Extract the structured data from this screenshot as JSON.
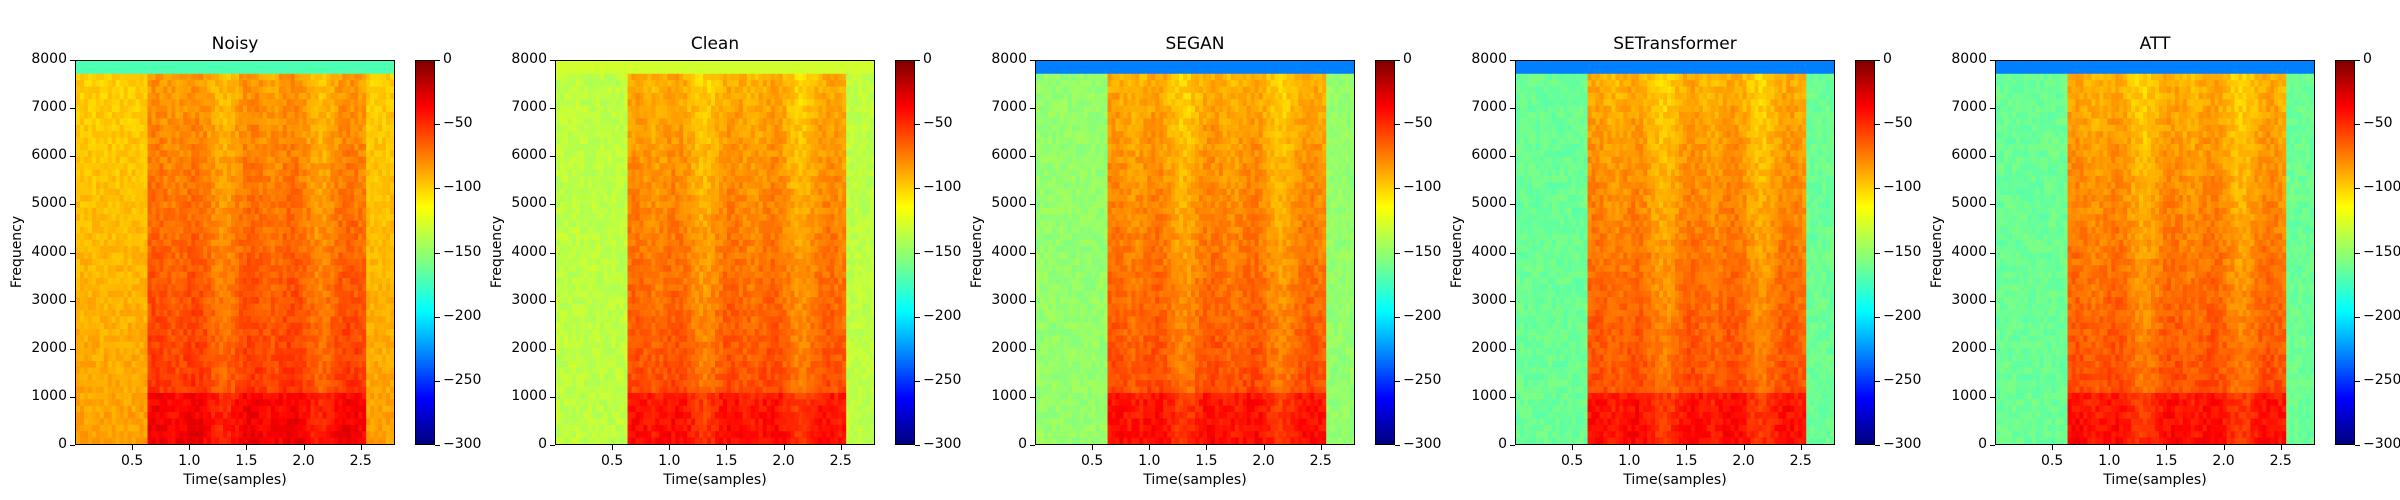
{
  "chart_data": {
    "type": "heatmap",
    "ylabel": "Frequency",
    "xlabel": "Time(samples)",
    "ylim": [
      0,
      8000
    ],
    "xlim": [
      0,
      2.8
    ],
    "yticks": [
      "0",
      "1000",
      "2000",
      "3000",
      "4000",
      "5000",
      "6000",
      "7000",
      "8000"
    ],
    "yticks_values": [
      0,
      1000,
      2000,
      3000,
      4000,
      5000,
      6000,
      7000,
      8000
    ],
    "xticks": [
      "0.5",
      "1.0",
      "1.5",
      "2.0",
      "2.5"
    ],
    "xticks_values": [
      0.5,
      1.0,
      1.5,
      2.0,
      2.5
    ],
    "colorbar": {
      "range": [
        -300,
        0
      ],
      "ticks": [
        "0",
        "−50",
        "−100",
        "−150",
        "−200",
        "−250",
        "−300"
      ],
      "tick_values": [
        0,
        -50,
        -100,
        -150,
        -200,
        -250,
        -300
      ],
      "colormap": "jet"
    },
    "panels": [
      {
        "title": "Noisy"
      },
      {
        "title": "Clean"
      },
      {
        "title": "SEGAN"
      },
      {
        "title": "SETransformer"
      },
      {
        "title": "ATT"
      }
    ]
  },
  "colors": {
    "dark_red": "#800000",
    "red": "#ff0000",
    "orange": "#ff8000",
    "yellow": "#ffff00",
    "green": "#80ff80",
    "cyan": "#00ffff",
    "blue": "#0000ff",
    "dark_blue": "#000080"
  }
}
